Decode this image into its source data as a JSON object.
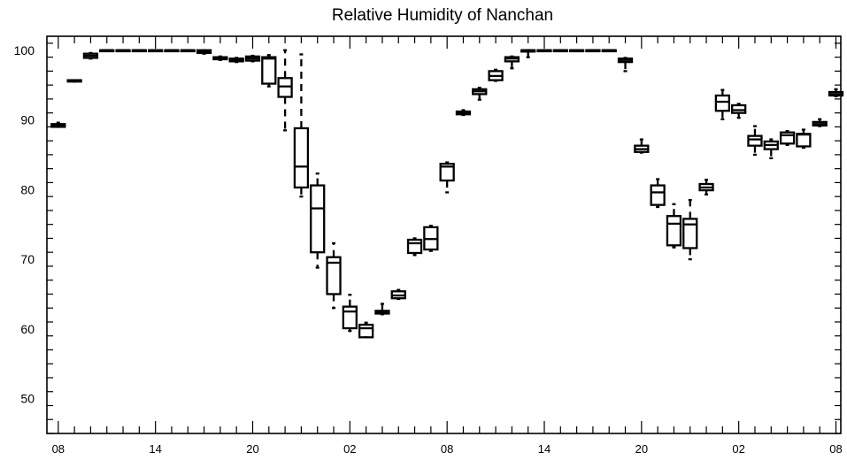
{
  "chart_data": {
    "type": "box",
    "title": "Relative Humidity of Nanchan",
    "xlabel": "",
    "ylabel": "",
    "ylim": [
      45,
      102
    ],
    "yticks": [
      50,
      60,
      70,
      80,
      90,
      100
    ],
    "x_tick_labels": [
      "08",
      "14",
      "20",
      "02",
      "08",
      "14",
      "20",
      "02",
      "08"
    ],
    "x_tick_hours": [
      0,
      6,
      12,
      18,
      24,
      30,
      36,
      42,
      48
    ],
    "x_range_hours": [
      -0.7,
      48.3
    ],
    "grid": false,
    "boxes": [
      {
        "hour": 0,
        "min": 89.0,
        "q1": 89.0,
        "median": 89.2,
        "q3": 89.4,
        "max": 89.6
      },
      {
        "hour": 1,
        "min": 95.5,
        "q1": 95.5,
        "median": 95.6,
        "q3": 95.7,
        "max": 95.7
      },
      {
        "hour": 2,
        "min": 98.8,
        "q1": 98.9,
        "median": 99.2,
        "q3": 99.5,
        "max": 99.6
      },
      {
        "hour": 3,
        "min": 100,
        "q1": 100,
        "median": 100,
        "q3": 100,
        "max": 100
      },
      {
        "hour": 4,
        "min": 100,
        "q1": 100,
        "median": 100,
        "q3": 100,
        "max": 100
      },
      {
        "hour": 5,
        "min": 100,
        "q1": 100,
        "median": 100,
        "q3": 100,
        "max": 100
      },
      {
        "hour": 6,
        "min": 100,
        "q1": 100,
        "median": 100,
        "q3": 100,
        "max": 100
      },
      {
        "hour": 7,
        "min": 100,
        "q1": 100,
        "median": 100,
        "q3": 100,
        "max": 100
      },
      {
        "hour": 8,
        "min": 100,
        "q1": 100,
        "median": 100,
        "q3": 100,
        "max": 100
      },
      {
        "hour": 9,
        "min": 99.5,
        "q1": 99.6,
        "median": 99.8,
        "q3": 100,
        "max": 100
      },
      {
        "hour": 10,
        "min": 98.6,
        "q1": 98.7,
        "median": 98.8,
        "q3": 99.0,
        "max": 99.1
      },
      {
        "hour": 11,
        "min": 98.3,
        "q1": 98.4,
        "median": 98.6,
        "q3": 98.8,
        "max": 98.9
      },
      {
        "hour": 12,
        "min": 98.4,
        "q1": 98.5,
        "median": 98.8,
        "q3": 99.1,
        "max": 99.2
      },
      {
        "hour": 13,
        "min": 94.8,
        "q1": 95.2,
        "median": 98.8,
        "q3": 99.0,
        "max": 99.3
      },
      {
        "hour": 14,
        "min": 88.5,
        "q1": 93.3,
        "median": 94.8,
        "q3": 96.0,
        "max": 100.0
      },
      {
        "hour": 15,
        "min": 79.0,
        "q1": 80.3,
        "median": 83.3,
        "q3": 88.8,
        "max": 99.4
      },
      {
        "hour": 16,
        "min": 68.8,
        "q1": 71.0,
        "median": 77.3,
        "q3": 80.6,
        "max": 82.3
      },
      {
        "hour": 17,
        "min": 63.0,
        "q1": 65.0,
        "median": 69.5,
        "q3": 70.3,
        "max": 72.3
      },
      {
        "hour": 18,
        "min": 59.7,
        "q1": 60.1,
        "median": 62.5,
        "q3": 63.2,
        "max": 64.9
      },
      {
        "hour": 19,
        "min": 58.8,
        "q1": 58.8,
        "median": 60.1,
        "q3": 60.6,
        "max": 60.9
      },
      {
        "hour": 20,
        "min": 62.1,
        "q1": 62.2,
        "median": 62.4,
        "q3": 62.6,
        "max": 63.6
      },
      {
        "hour": 21,
        "min": 64.3,
        "q1": 64.4,
        "median": 64.8,
        "q3": 65.4,
        "max": 65.6
      },
      {
        "hour": 22,
        "min": 70.6,
        "q1": 70.9,
        "median": 72.3,
        "q3": 72.8,
        "max": 73.0
      },
      {
        "hour": 23,
        "min": 71.2,
        "q1": 71.4,
        "median": 72.9,
        "q3": 74.6,
        "max": 74.8
      },
      {
        "hour": 24,
        "min": 79.6,
        "q1": 81.3,
        "median": 83.3,
        "q3": 83.7,
        "max": 83.9
      },
      {
        "hour": 25,
        "min": 90.7,
        "q1": 90.8,
        "median": 91.0,
        "q3": 91.2,
        "max": 91.4
      },
      {
        "hour": 26,
        "min": 92.9,
        "q1": 93.7,
        "median": 94.1,
        "q3": 94.4,
        "max": 94.6
      },
      {
        "hour": 27,
        "min": 95.6,
        "q1": 95.7,
        "median": 96.3,
        "q3": 97.0,
        "max": 97.2
      },
      {
        "hour": 28,
        "min": 97.4,
        "q1": 98.4,
        "median": 98.8,
        "q3": 99.0,
        "max": 99.1
      },
      {
        "hour": 29,
        "min": 99.0,
        "q1": 99.8,
        "median": 100,
        "q3": 100,
        "max": 100
      },
      {
        "hour": 30,
        "min": 100,
        "q1": 100,
        "median": 100,
        "q3": 100,
        "max": 100
      },
      {
        "hour": 31,
        "min": 100,
        "q1": 100,
        "median": 100,
        "q3": 100,
        "max": 100
      },
      {
        "hour": 32,
        "min": 100,
        "q1": 100,
        "median": 100,
        "q3": 100,
        "max": 100
      },
      {
        "hour": 33,
        "min": 100,
        "q1": 100,
        "median": 100,
        "q3": 100,
        "max": 100
      },
      {
        "hour": 34,
        "min": 100,
        "q1": 100,
        "median": 100,
        "q3": 100,
        "max": 100
      },
      {
        "hour": 35,
        "min": 97.0,
        "q1": 98.3,
        "median": 98.6,
        "q3": 98.8,
        "max": 98.9
      },
      {
        "hour": 36,
        "min": 85.3,
        "q1": 85.4,
        "median": 85.8,
        "q3": 86.3,
        "max": 87.2
      },
      {
        "hour": 37,
        "min": 77.5,
        "q1": 77.8,
        "median": 79.6,
        "q3": 80.6,
        "max": 81.5
      },
      {
        "hour": 38,
        "min": 71.7,
        "q1": 72.0,
        "median": 75.1,
        "q3": 76.2,
        "max": 77.9
      },
      {
        "hour": 39,
        "min": 70.0,
        "q1": 71.6,
        "median": 75.0,
        "q3": 75.8,
        "max": 78.5
      },
      {
        "hour": 40,
        "min": 79.3,
        "q1": 79.9,
        "median": 80.3,
        "q3": 80.8,
        "max": 81.4
      },
      {
        "hour": 41,
        "min": 90.1,
        "q1": 91.3,
        "median": 92.6,
        "q3": 93.5,
        "max": 94.3
      },
      {
        "hour": 42,
        "min": 90.3,
        "q1": 91.0,
        "median": 91.4,
        "q3": 92.1,
        "max": 92.3
      },
      {
        "hour": 43,
        "min": 85.0,
        "q1": 86.3,
        "median": 87.2,
        "q3": 87.7,
        "max": 89.1
      },
      {
        "hour": 44,
        "min": 84.5,
        "q1": 85.8,
        "median": 86.4,
        "q3": 86.9,
        "max": 87.2
      },
      {
        "hour": 45,
        "min": 86.4,
        "q1": 86.6,
        "median": 87.8,
        "q3": 88.2,
        "max": 88.4
      },
      {
        "hour": 46,
        "min": 86.0,
        "q1": 86.2,
        "median": 87.9,
        "q3": 88.0,
        "max": 88.6
      },
      {
        "hour": 47,
        "min": 89.1,
        "q1": 89.2,
        "median": 89.4,
        "q3": 89.7,
        "max": 90.1
      },
      {
        "hour": 48,
        "min": 93.4,
        "q1": 93.5,
        "median": 93.7,
        "q3": 94.0,
        "max": 94.4
      }
    ]
  }
}
